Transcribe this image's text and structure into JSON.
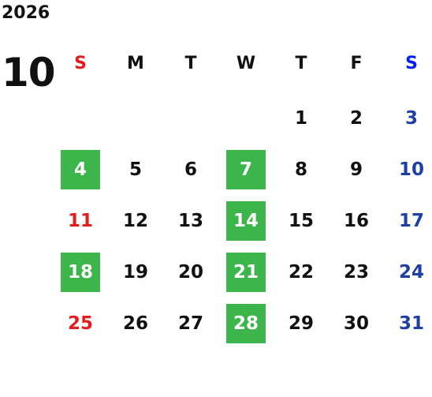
{
  "calendar": {
    "year": "2026",
    "month": "10",
    "weekdays": [
      "S",
      "M",
      "T",
      "W",
      "T",
      "F",
      "S"
    ],
    "highlight_color": "#3cb54a",
    "sunday_color": "#e11d1d",
    "saturday_color": "#1f3fa3",
    "weeks": [
      [
        "",
        "",
        "",
        "",
        "1",
        "2",
        "3"
      ],
      [
        "4",
        "5",
        "6",
        "7",
        "8",
        "9",
        "10"
      ],
      [
        "11",
        "12",
        "13",
        "14",
        "15",
        "16",
        "17"
      ],
      [
        "18",
        "19",
        "20",
        "21",
        "22",
        "23",
        "24"
      ],
      [
        "25",
        "26",
        "27",
        "28",
        "29",
        "30",
        "31"
      ]
    ],
    "highlighted_days": [
      "4",
      "7",
      "14",
      "18",
      "21",
      "28"
    ]
  }
}
